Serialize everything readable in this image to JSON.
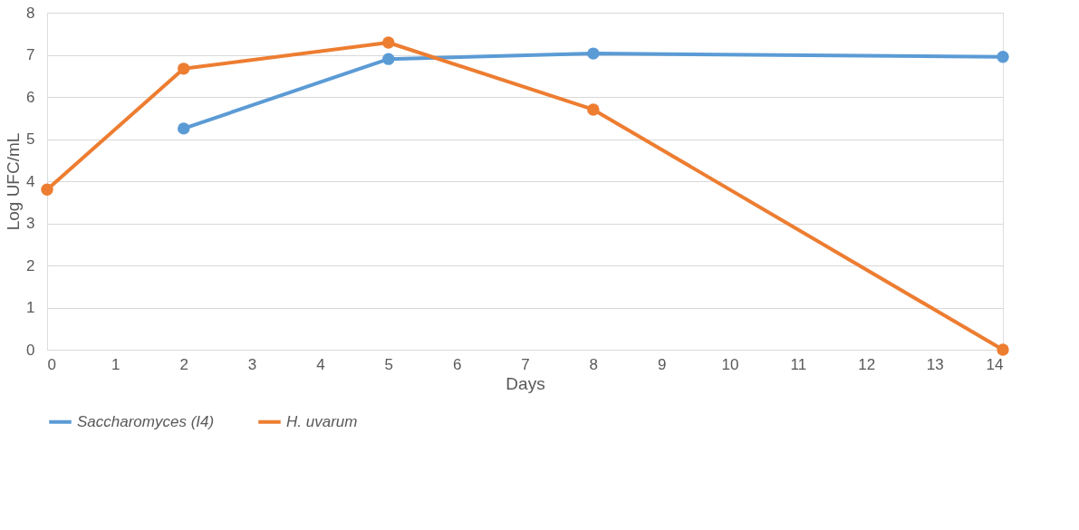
{
  "chart_data": {
    "type": "line",
    "xlabel": "Days",
    "ylabel": "Log UFC/mL",
    "xlim": [
      0,
      14
    ],
    "xticks": [
      0,
      1,
      2,
      3,
      4,
      5,
      6,
      7,
      8,
      9,
      10,
      11,
      12,
      13,
      14
    ],
    "ylim": [
      0,
      8
    ],
    "yticks": [
      0,
      1,
      2,
      3,
      4,
      5,
      6,
      7,
      8
    ],
    "grid": "y",
    "legend": "bottom",
    "marker": "circle",
    "line_style": "solid",
    "series": [
      {
        "name": "Saccharomyces (I4)",
        "color": "#5b9bd5",
        "x": [
          2,
          5,
          8,
          14
        ],
        "values": [
          5.25,
          6.9,
          7.03,
          6.95
        ]
      },
      {
        "name": "H. uvarum",
        "color": "#ed7d31",
        "x": [
          0,
          2,
          5,
          8,
          14
        ],
        "values": [
          3.8,
          6.67,
          7.29,
          5.7,
          0
        ]
      }
    ]
  }
}
